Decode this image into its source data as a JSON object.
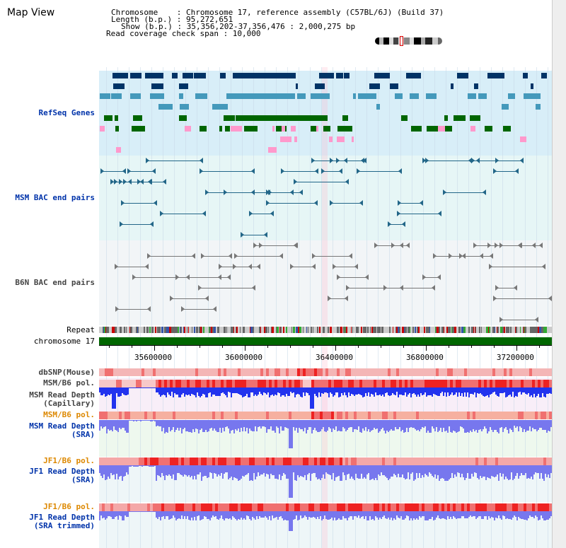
{
  "page": {
    "title": "Map View"
  },
  "header": {
    "chromosome_line": "Chromosome    : Chromosome 17, reference assembly (C57BL/6J) (Build 37)",
    "length_line": "Length (b.p.) : 95,272,651",
    "show_line": "Show (b.p.) : 35,356,202-37,356,476 : 2,000,275 bp",
    "coverage_line": "Read coverage check span : 10,000"
  },
  "colors": {
    "refseq_bg": "#d8eef8",
    "bac_bg": "#e6f6f6",
    "b6n_bg": "#f0f4f6",
    "chrom": "#006600",
    "depth_dark": "#2233ee",
    "depth_light": "#7777ee",
    "pol_red": "#ee2222",
    "pol_pink": "#f4b6b6",
    "gene_navy": "#003366",
    "gene_teal": "#4499bb",
    "gene_green": "#006600",
    "gene_pink": "#ff99cc",
    "bac_teal": "#226688",
    "b6n_gray": "#777777"
  },
  "tracks": {
    "refseq": "RefSeq Genes",
    "msm_bac": "MSM BAC end pairs",
    "b6n_bac": "B6N BAC end pairs",
    "repeat": "Repeat",
    "chromosome": "chromosome 17",
    "dbsnp": "dbSNP(Mouse)",
    "msm_b6_pol_1": "MSM/B6 pol.",
    "msm_depth_cap": "MSM Read Depth\n(Capillary)",
    "msm_b6_pol_2": "MSM/B6 pol.",
    "msm_depth_sra": "MSM Read Depth\n(SRA)",
    "jf1_b6_pol_1": "JF1/B6 pol.",
    "jf1_depth_sra": "JF1 Read Depth\n(SRA)",
    "jf1_b6_pol_2": "JF1/B6 pol.",
    "jf1_depth_trim": "JF1 Read Depth\n(SRA trimmed)"
  },
  "axis": {
    "ticks": [
      {
        "label": "35600000",
        "value": 35600000
      },
      {
        "label": "36000000",
        "value": 36000000
      },
      {
        "label": "36400000",
        "value": 36400000
      },
      {
        "label": "36800000",
        "value": 36800000
      },
      {
        "label": "37200000",
        "value": 37200000
      }
    ],
    "start": 35356202,
    "end": 37356476
  }
}
